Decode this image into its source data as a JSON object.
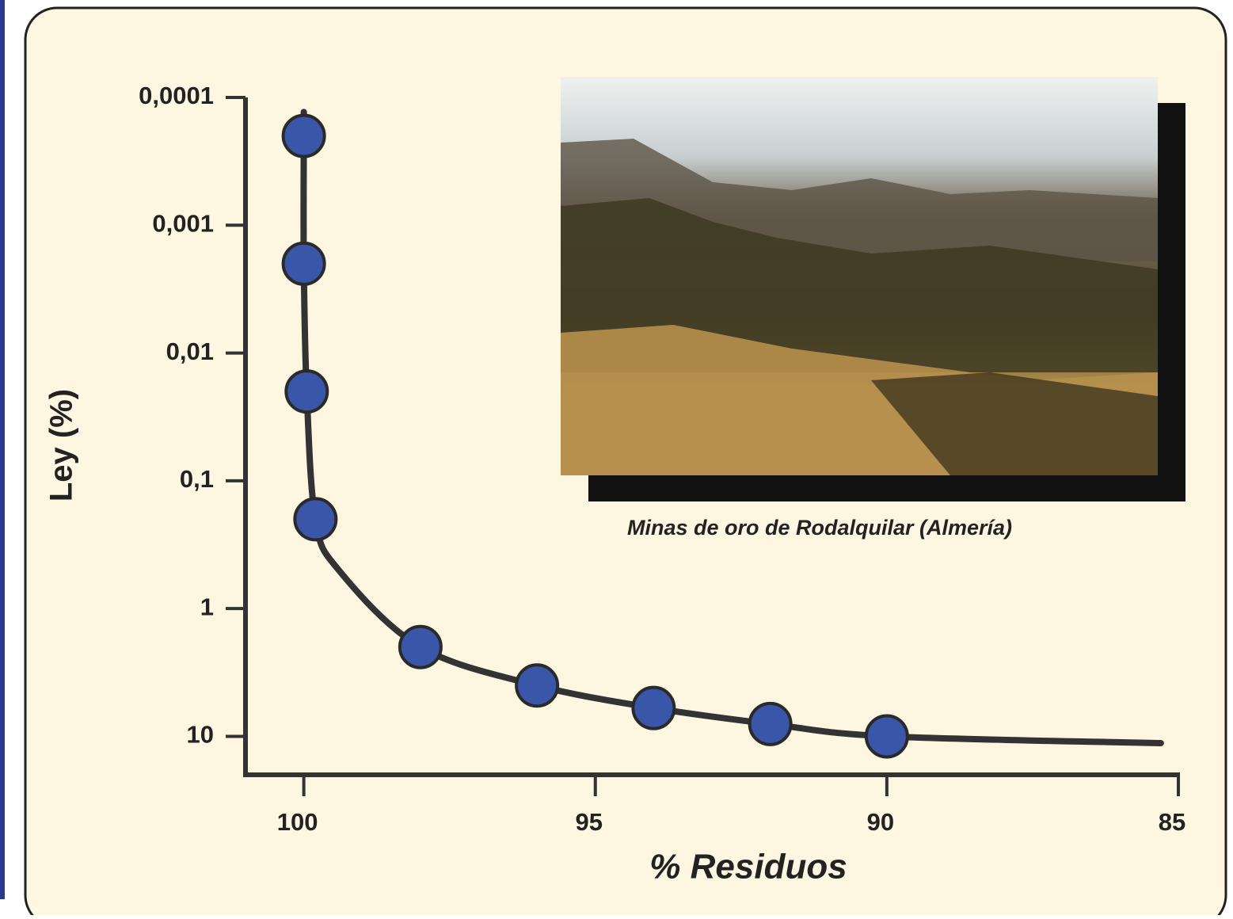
{
  "chart_data": {
    "type": "scatter",
    "xlabel": "% Residuos",
    "ylabel": "Ley (%)",
    "annotation": "Minas de oro de Rodalquilar (Almería)",
    "x": [
      100,
      100,
      99.95,
      99.8,
      98,
      96,
      94,
      92,
      90
    ],
    "values": [
      0.0002,
      0.002,
      0.02,
      0.2,
      2,
      4,
      6,
      8,
      10
    ],
    "color": "#3a56a8",
    "curve": {
      "x": [
        100,
        100,
        100,
        99.95,
        99.8,
        99.4,
        98,
        96,
        94,
        92,
        90,
        85.3
      ],
      "values": [
        0.00013,
        0.0002,
        0.002,
        0.02,
        0.2,
        0.5,
        2,
        4,
        6,
        8,
        10,
        11.3
      ],
      "color": "#333333"
    },
    "xlim": [
      101,
      85
    ],
    "xticks": [
      100,
      95,
      90,
      85
    ],
    "ylim": [
      20,
      0.0001
    ],
    "yticks": [
      {
        "value": 0.0001,
        "label": "0,0001"
      },
      {
        "value": 0.001,
        "label": "0,001"
      },
      {
        "value": 0.01,
        "label": "0,01"
      },
      {
        "value": 0.1,
        "label": "0,1"
      },
      1,
      10
    ],
    "log_y": true
  }
}
